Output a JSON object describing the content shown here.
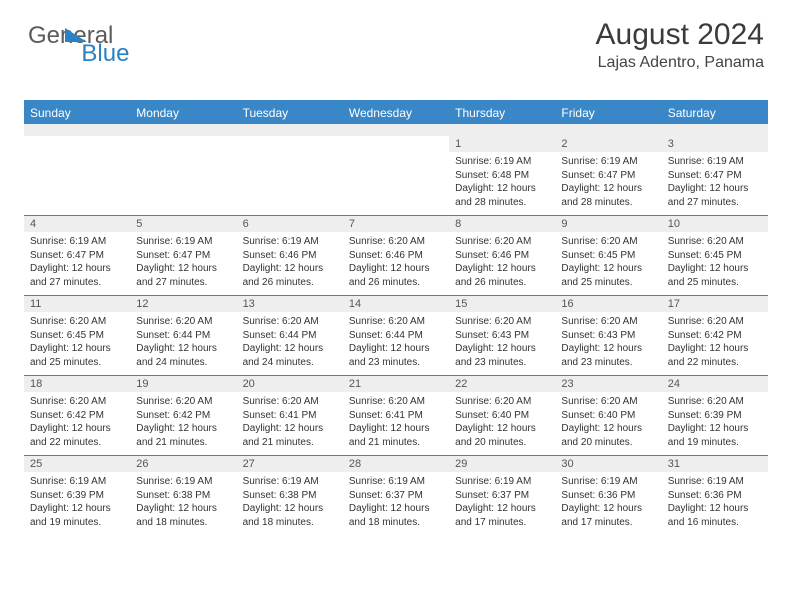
{
  "logo": {
    "text1": "General",
    "text2": "Blue"
  },
  "header": {
    "title": "August 2024",
    "location": "Lajas Adentro, Panama"
  },
  "colors": {
    "accent": "#3a87c7",
    "grey": "#eeeeee",
    "text": "#333333"
  },
  "dayNames": [
    "Sunday",
    "Monday",
    "Tuesday",
    "Wednesday",
    "Thursday",
    "Friday",
    "Saturday"
  ],
  "weeks": [
    {
      "nums": [
        "",
        "",
        "",
        "",
        "1",
        "2",
        "3"
      ],
      "cells": [
        null,
        null,
        null,
        null,
        {
          "sunrise": "6:19 AM",
          "sunset": "6:48 PM",
          "daylight": "12 hours and 28 minutes."
        },
        {
          "sunrise": "6:19 AM",
          "sunset": "6:47 PM",
          "daylight": "12 hours and 28 minutes."
        },
        {
          "sunrise": "6:19 AM",
          "sunset": "6:47 PM",
          "daylight": "12 hours and 27 minutes."
        }
      ]
    },
    {
      "nums": [
        "4",
        "5",
        "6",
        "7",
        "8",
        "9",
        "10"
      ],
      "cells": [
        {
          "sunrise": "6:19 AM",
          "sunset": "6:47 PM",
          "daylight": "12 hours and 27 minutes."
        },
        {
          "sunrise": "6:19 AM",
          "sunset": "6:47 PM",
          "daylight": "12 hours and 27 minutes."
        },
        {
          "sunrise": "6:19 AM",
          "sunset": "6:46 PM",
          "daylight": "12 hours and 26 minutes."
        },
        {
          "sunrise": "6:20 AM",
          "sunset": "6:46 PM",
          "daylight": "12 hours and 26 minutes."
        },
        {
          "sunrise": "6:20 AM",
          "sunset": "6:46 PM",
          "daylight": "12 hours and 26 minutes."
        },
        {
          "sunrise": "6:20 AM",
          "sunset": "6:45 PM",
          "daylight": "12 hours and 25 minutes."
        },
        {
          "sunrise": "6:20 AM",
          "sunset": "6:45 PM",
          "daylight": "12 hours and 25 minutes."
        }
      ]
    },
    {
      "nums": [
        "11",
        "12",
        "13",
        "14",
        "15",
        "16",
        "17"
      ],
      "cells": [
        {
          "sunrise": "6:20 AM",
          "sunset": "6:45 PM",
          "daylight": "12 hours and 25 minutes."
        },
        {
          "sunrise": "6:20 AM",
          "sunset": "6:44 PM",
          "daylight": "12 hours and 24 minutes."
        },
        {
          "sunrise": "6:20 AM",
          "sunset": "6:44 PM",
          "daylight": "12 hours and 24 minutes."
        },
        {
          "sunrise": "6:20 AM",
          "sunset": "6:44 PM",
          "daylight": "12 hours and 23 minutes."
        },
        {
          "sunrise": "6:20 AM",
          "sunset": "6:43 PM",
          "daylight": "12 hours and 23 minutes."
        },
        {
          "sunrise": "6:20 AM",
          "sunset": "6:43 PM",
          "daylight": "12 hours and 23 minutes."
        },
        {
          "sunrise": "6:20 AM",
          "sunset": "6:42 PM",
          "daylight": "12 hours and 22 minutes."
        }
      ]
    },
    {
      "nums": [
        "18",
        "19",
        "20",
        "21",
        "22",
        "23",
        "24"
      ],
      "cells": [
        {
          "sunrise": "6:20 AM",
          "sunset": "6:42 PM",
          "daylight": "12 hours and 22 minutes."
        },
        {
          "sunrise": "6:20 AM",
          "sunset": "6:42 PM",
          "daylight": "12 hours and 21 minutes."
        },
        {
          "sunrise": "6:20 AM",
          "sunset": "6:41 PM",
          "daylight": "12 hours and 21 minutes."
        },
        {
          "sunrise": "6:20 AM",
          "sunset": "6:41 PM",
          "daylight": "12 hours and 21 minutes."
        },
        {
          "sunrise": "6:20 AM",
          "sunset": "6:40 PM",
          "daylight": "12 hours and 20 minutes."
        },
        {
          "sunrise": "6:20 AM",
          "sunset": "6:40 PM",
          "daylight": "12 hours and 20 minutes."
        },
        {
          "sunrise": "6:20 AM",
          "sunset": "6:39 PM",
          "daylight": "12 hours and 19 minutes."
        }
      ]
    },
    {
      "nums": [
        "25",
        "26",
        "27",
        "28",
        "29",
        "30",
        "31"
      ],
      "cells": [
        {
          "sunrise": "6:19 AM",
          "sunset": "6:39 PM",
          "daylight": "12 hours and 19 minutes."
        },
        {
          "sunrise": "6:19 AM",
          "sunset": "6:38 PM",
          "daylight": "12 hours and 18 minutes."
        },
        {
          "sunrise": "6:19 AM",
          "sunset": "6:38 PM",
          "daylight": "12 hours and 18 minutes."
        },
        {
          "sunrise": "6:19 AM",
          "sunset": "6:37 PM",
          "daylight": "12 hours and 18 minutes."
        },
        {
          "sunrise": "6:19 AM",
          "sunset": "6:37 PM",
          "daylight": "12 hours and 17 minutes."
        },
        {
          "sunrise": "6:19 AM",
          "sunset": "6:36 PM",
          "daylight": "12 hours and 17 minutes."
        },
        {
          "sunrise": "6:19 AM",
          "sunset": "6:36 PM",
          "daylight": "12 hours and 16 minutes."
        }
      ]
    }
  ],
  "labels": {
    "sunrise": "Sunrise: ",
    "sunset": "Sunset: ",
    "daylight": "Daylight: "
  }
}
